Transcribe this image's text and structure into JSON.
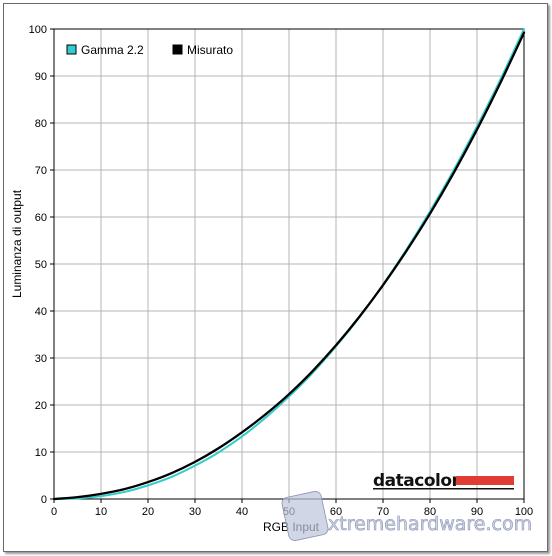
{
  "chart_data": {
    "type": "line",
    "xlabel": "RGB Input",
    "ylabel": "Luminanza di output",
    "xlim": [
      0,
      100
    ],
    "ylim": [
      0,
      100
    ],
    "xticks": [
      0,
      10,
      20,
      30,
      40,
      50,
      60,
      70,
      80,
      90,
      100
    ],
    "yticks": [
      0,
      10,
      20,
      30,
      40,
      50,
      60,
      70,
      80,
      90,
      100
    ],
    "grid": true,
    "legend_position": "top-left",
    "series": [
      {
        "name": "Gamma 2.2",
        "color": "#33cccc",
        "x": [
          0,
          5,
          10,
          15,
          20,
          25,
          30,
          35,
          40,
          45,
          50,
          55,
          60,
          65,
          70,
          75,
          80,
          85,
          90,
          95,
          100
        ],
        "values": [
          0,
          0.1,
          0.6,
          1.5,
          2.9,
          4.7,
          7.1,
          9.9,
          13.3,
          17.3,
          21.8,
          26.8,
          32.5,
          38.7,
          45.6,
          53.1,
          61.2,
          69.9,
          79.3,
          89.3,
          100
        ]
      },
      {
        "name": "Misurato",
        "color": "#000000",
        "x": [
          0,
          5,
          10,
          15,
          20,
          25,
          30,
          35,
          40,
          45,
          50,
          55,
          60,
          65,
          70,
          75,
          80,
          85,
          90,
          95,
          100
        ],
        "values": [
          0,
          0.4,
          1.1,
          2.1,
          3.6,
          5.5,
          7.9,
          10.8,
          14.2,
          18.0,
          22.3,
          27.2,
          32.7,
          38.8,
          45.5,
          52.8,
          60.7,
          69.3,
          78.6,
          88.6,
          99.2
        ]
      }
    ]
  },
  "brand": {
    "name": "datacolor",
    "bar_color": "#e03c31"
  },
  "watermark": {
    "text": "xtremehardware.com"
  }
}
